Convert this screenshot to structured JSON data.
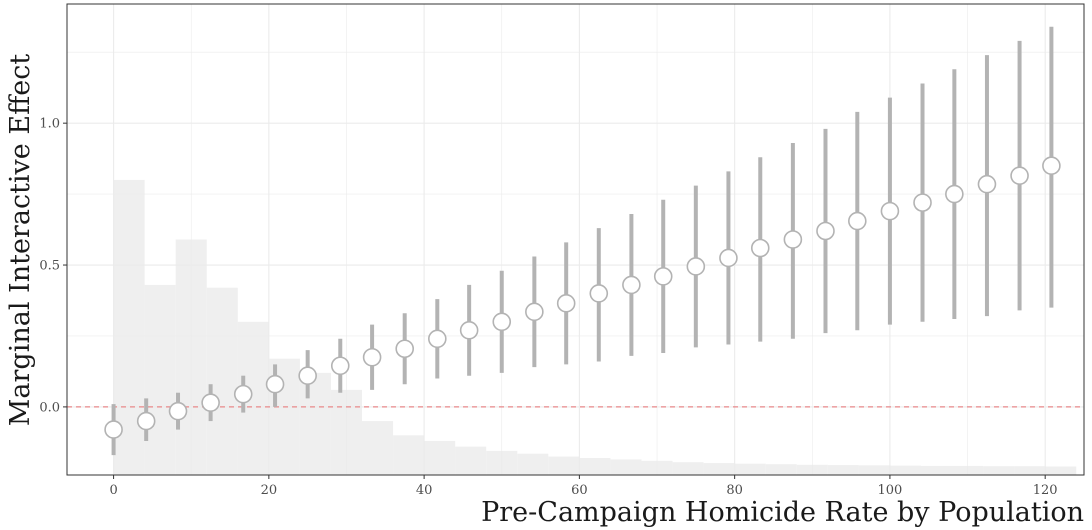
{
  "chart_data": {
    "type": "scatter",
    "title": "",
    "xlabel": "Pre-Campaign Homicide Rate by Population",
    "ylabel": "Marginal Interactive Effect",
    "xlim": [
      -6,
      125
    ],
    "ylim": [
      -0.24,
      1.42
    ],
    "x_ticks": [
      0,
      20,
      40,
      60,
      80,
      100,
      120
    ],
    "y_ticks": [
      0.0,
      0.5,
      1.0
    ],
    "x_tick_labels": [
      "0",
      "20",
      "40",
      "60",
      "80",
      "100",
      "120"
    ],
    "y_tick_labels": [
      "0.0",
      "0.5",
      "1.0"
    ],
    "grid": true,
    "reference_line": {
      "y": 0,
      "style": "dashed",
      "color": "#e8888a"
    },
    "colors": {
      "points_stroke": "#b3b3b3",
      "points_fill": "#ffffff",
      "errorbar": "#b3b3b3",
      "histogram": "#efefef",
      "border": "#333333",
      "grid": "#ebebeb"
    },
    "series": [
      {
        "type": "pointrange",
        "x": [
          0,
          4.2,
          8.3,
          12.5,
          16.7,
          20.8,
          25,
          29.2,
          33.3,
          37.5,
          41.7,
          45.8,
          50,
          54.2,
          58.3,
          62.5,
          66.7,
          70.8,
          75,
          79.2,
          83.3,
          87.5,
          91.7,
          95.8,
          100,
          104.2,
          108.3,
          112.5,
          116.7,
          120.8
        ],
        "estimate": [
          -0.08,
          -0.05,
          -0.015,
          0.015,
          0.045,
          0.08,
          0.11,
          0.145,
          0.175,
          0.205,
          0.24,
          0.27,
          0.3,
          0.335,
          0.365,
          0.4,
          0.43,
          0.46,
          0.495,
          0.525,
          0.56,
          0.59,
          0.62,
          0.655,
          0.69,
          0.72,
          0.75,
          0.785,
          0.815,
          0.85
        ],
        "lower": [
          -0.17,
          -0.12,
          -0.08,
          -0.05,
          -0.02,
          0.0,
          0.03,
          0.05,
          0.06,
          0.08,
          0.1,
          0.11,
          0.12,
          0.14,
          0.15,
          0.16,
          0.18,
          0.19,
          0.21,
          0.22,
          0.23,
          0.24,
          0.26,
          0.27,
          0.29,
          0.3,
          0.31,
          0.32,
          0.34,
          0.35
        ],
        "upper": [
          0.01,
          0.03,
          0.05,
          0.08,
          0.11,
          0.15,
          0.2,
          0.24,
          0.29,
          0.33,
          0.38,
          0.43,
          0.48,
          0.53,
          0.58,
          0.63,
          0.68,
          0.73,
          0.78,
          0.83,
          0.88,
          0.93,
          0.98,
          1.04,
          1.09,
          1.14,
          1.19,
          1.24,
          1.29,
          1.34
        ]
      }
    ],
    "histogram": {
      "bins_start": [
        0,
        4,
        8,
        12,
        16,
        20,
        24,
        28,
        32,
        36,
        40,
        44,
        48,
        52,
        56,
        60,
        64,
        68,
        72,
        76,
        80,
        84,
        88,
        92,
        96,
        100,
        104,
        108,
        112,
        116,
        120
      ],
      "bin_width": 4,
      "heights": [
        0.8,
        0.43,
        0.59,
        0.42,
        0.3,
        0.17,
        0.12,
        0.06,
        -0.05,
        -0.1,
        -0.12,
        -0.14,
        -0.155,
        -0.165,
        -0.175,
        -0.18,
        -0.185,
        -0.19,
        -0.195,
        -0.198,
        -0.2,
        -0.202,
        -0.204,
        -0.205,
        -0.206,
        -0.207,
        -0.208,
        -0.208,
        -0.209,
        -0.209,
        -0.21
      ]
    }
  }
}
